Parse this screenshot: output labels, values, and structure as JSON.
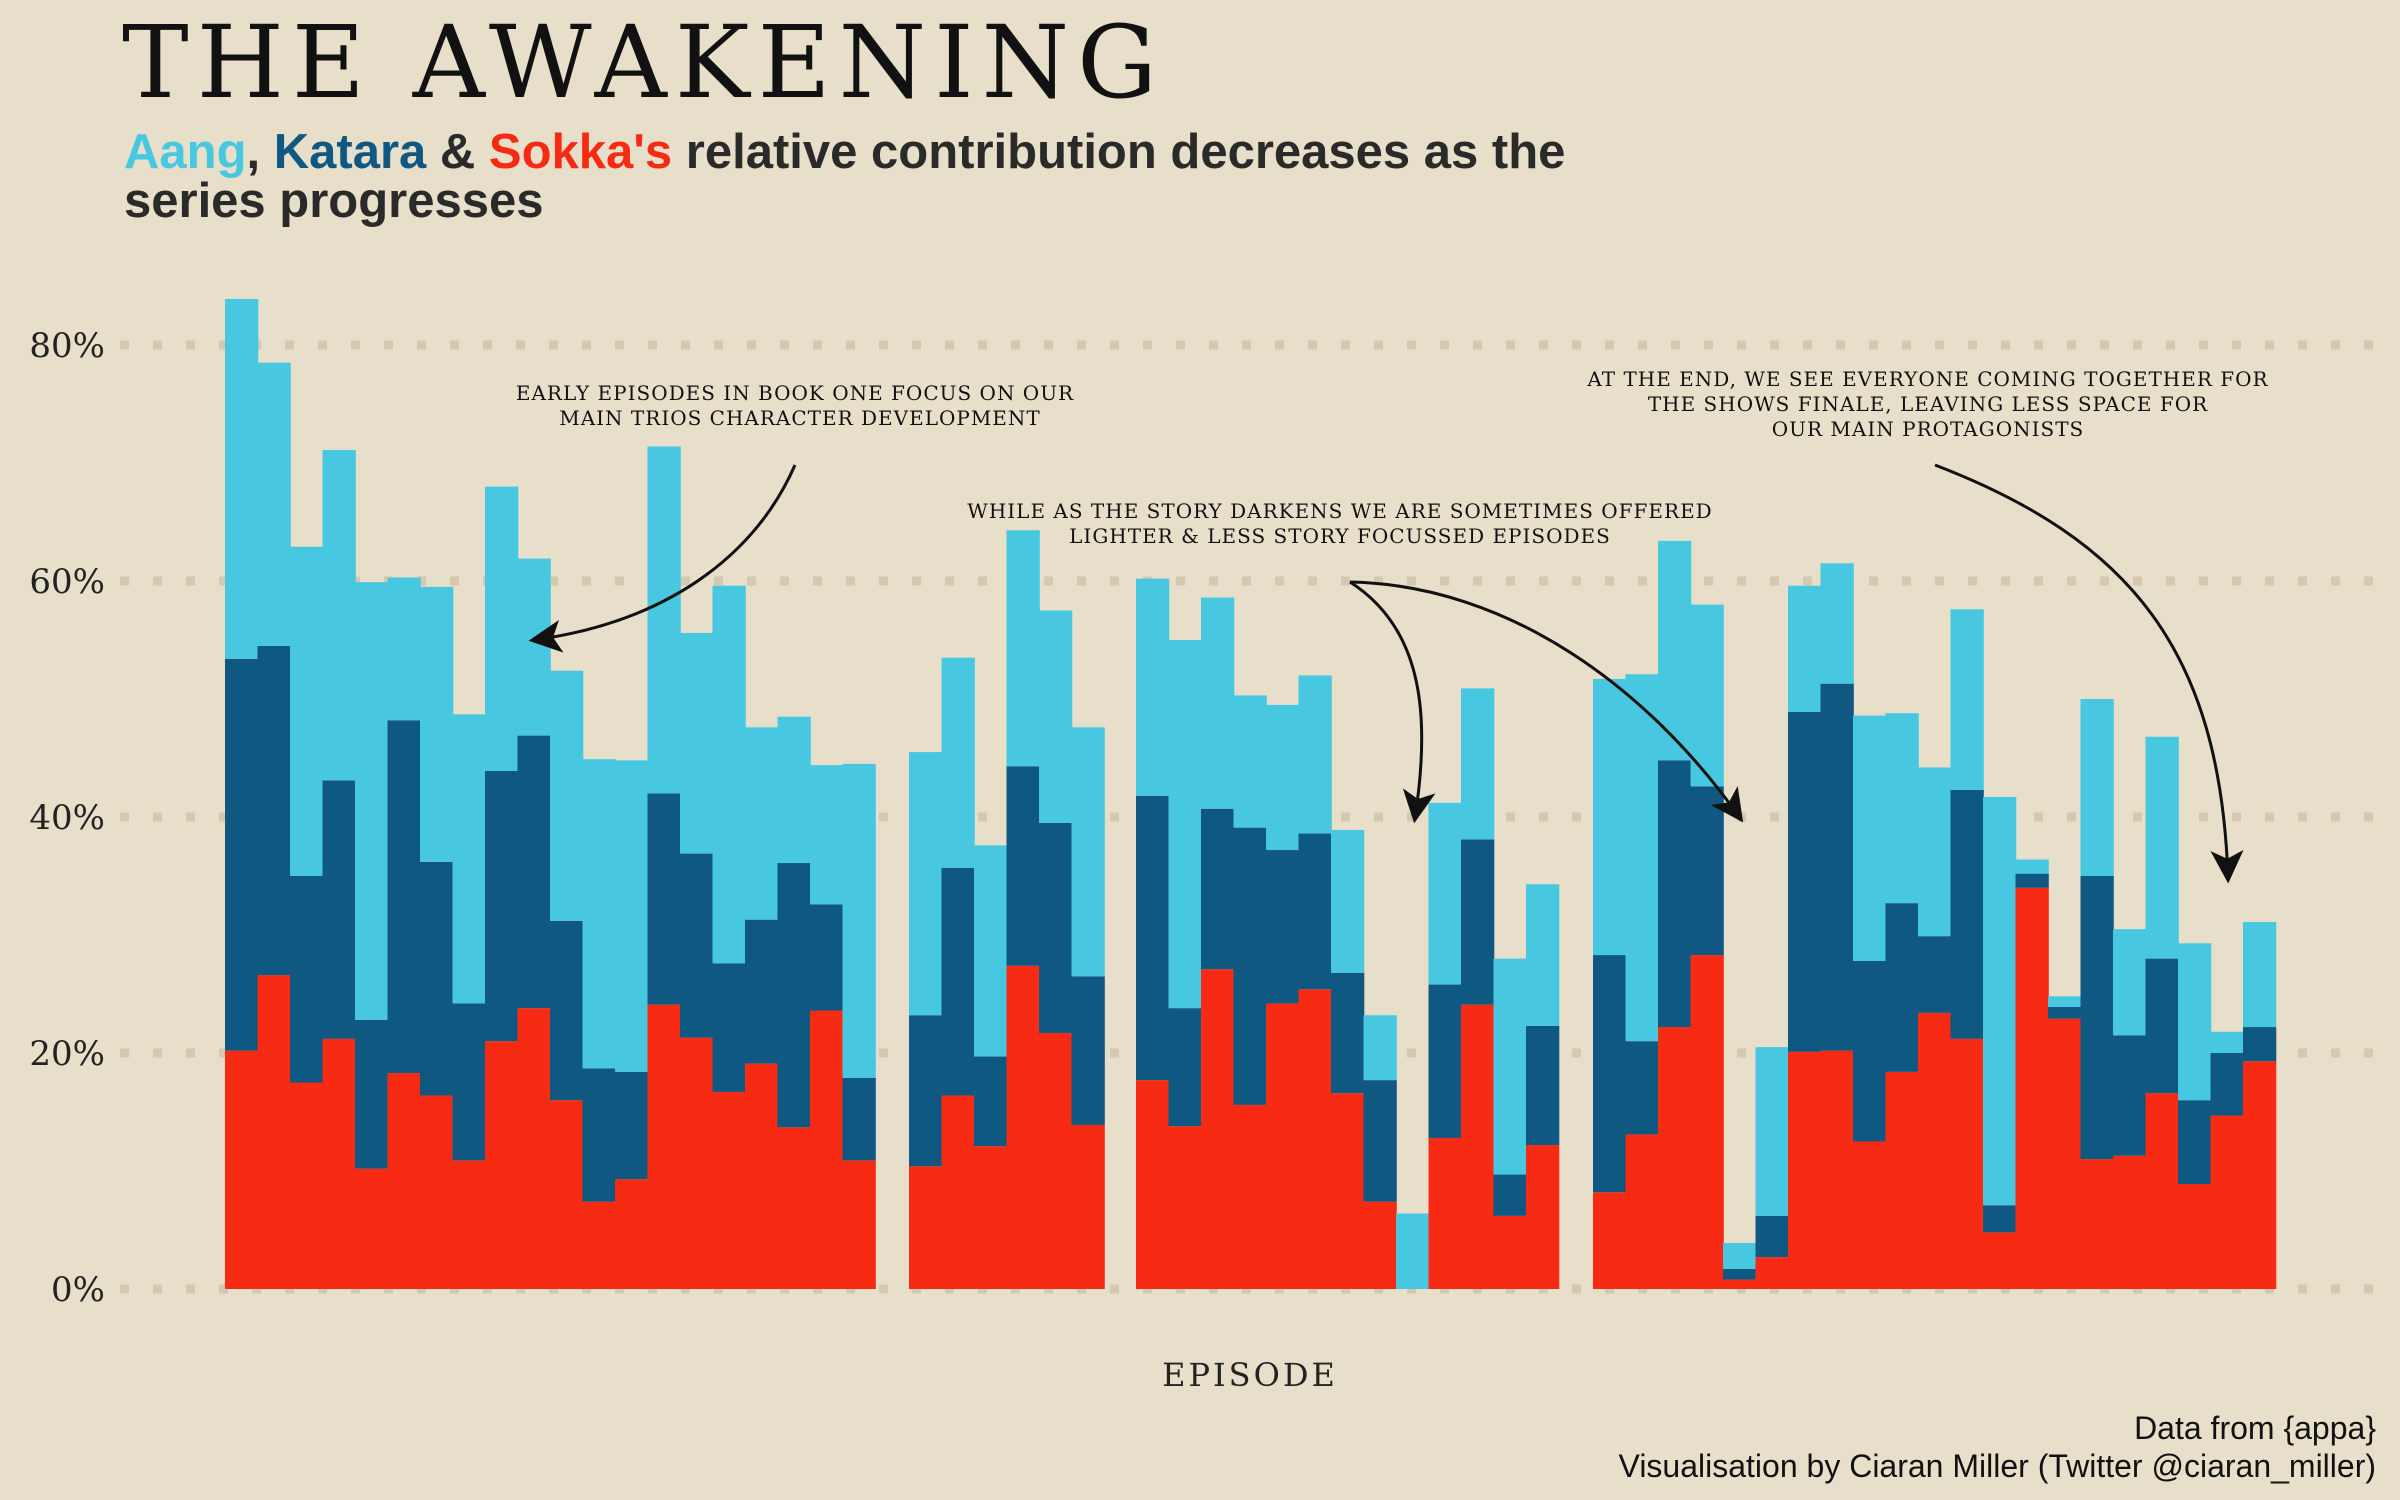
{
  "title": "THE AWAKENING",
  "subtitle": {
    "aang": "Aang",
    "sep1": ", ",
    "katara": "Katara",
    "sep2": " & ",
    "sokka": "Sokka's",
    "rest": " relative contribution decreases as the series progresses"
  },
  "credits": {
    "line1": "Data from {appa}",
    "line2": "Visualisation by Ciaran Miller (Twitter @ciaran_miller)"
  },
  "colors": {
    "aang": "#48c8e0",
    "katara": "#0e5881",
    "sokka": "#f72b13",
    "background": "#e8dfca"
  },
  "annotations": [
    {
      "lines": [
        "EARLY EPISODES IN BOOK ONE FOCUS ON OUR",
        "MAIN TRIOS CHARACTER DEVELOPMENT"
      ]
    },
    {
      "lines": [
        "WHILE AS THE STORY DARKENS WE ARE SOMETIMES OFFERED",
        "LIGHTER & LESS STORY FOCUSSED EPISODES"
      ]
    },
    {
      "lines": [
        "AT THE END, WE SEE EVERYONE COMING TOGETHER FOR",
        "THE SHOWS FINALE, LEAVING LESS SPACE FOR",
        "OUR MAIN PROTAGONISTS"
      ]
    }
  ],
  "chart_data": {
    "type": "bar",
    "stacked": true,
    "xlabel": "EPISODE",
    "ylabel": "",
    "ylim": [
      0,
      85
    ],
    "yticks": [
      "0%",
      "20%",
      "40%",
      "60%",
      "80%"
    ],
    "grid": "horizontal dotted",
    "legend": "none (series named in subtitle)",
    "groups": [
      {
        "sokka": [
          20.2,
          26.6,
          17.5,
          21.2,
          10.2,
          18.3,
          16.4,
          10.9,
          21.0,
          23.8,
          16.0,
          7.4,
          9.3,
          24.1,
          21.3,
          16.7,
          19.1,
          13.7,
          23.6,
          10.9
        ],
        "katara": [
          33.2,
          27.9,
          17.5,
          21.9,
          12.6,
          29.9,
          19.8,
          13.3,
          22.9,
          23.1,
          15.2,
          11.3,
          9.1,
          17.9,
          15.6,
          10.9,
          12.2,
          22.4,
          9.0,
          7.0
        ],
        "aang": [
          30.5,
          24.0,
          27.9,
          28.0,
          37.1,
          12.1,
          23.3,
          24.5,
          24.1,
          15.0,
          21.2,
          26.2,
          26.4,
          29.4,
          18.7,
          32.0,
          16.3,
          12.4,
          11.8,
          26.6
        ]
      },
      {
        "sokka": [
          10.4,
          16.4,
          12.1,
          27.4,
          21.7,
          13.9
        ],
        "katara": [
          12.8,
          19.3,
          7.6,
          16.9,
          17.8,
          12.6
        ],
        "aang": [
          22.3,
          17.8,
          17.9,
          20.0,
          18.0,
          21.1
        ]
      },
      {
        "sokka": [
          17.7,
          13.8,
          27.1,
          15.6,
          24.2,
          25.4,
          16.6,
          7.4,
          0.0,
          12.8,
          24.1,
          6.2,
          12.2
        ],
        "katara": [
          24.1,
          10.0,
          13.6,
          23.5,
          13.0,
          13.2,
          10.2,
          10.3,
          0.0,
          13.0,
          14.0,
          3.5,
          10.1
        ],
        "aang": [
          18.4,
          31.2,
          17.9,
          11.2,
          12.3,
          13.4,
          12.1,
          5.5,
          6.4,
          15.4,
          12.8,
          18.3,
          12.0
        ]
      },
      {
        "sokka": [
          8.2,
          13.1,
          22.2,
          28.3,
          0.8,
          2.7,
          20.1,
          20.2,
          12.5,
          18.4,
          23.4,
          21.2,
          4.8,
          34.0,
          22.9,
          11.0,
          11.3,
          16.6,
          8.9,
          14.7,
          19.3
        ],
        "katara": [
          20.1,
          7.9,
          22.6,
          14.3,
          0.9,
          3.5,
          28.8,
          31.1,
          15.3,
          14.3,
          6.5,
          21.1,
          2.3,
          1.2,
          1.0,
          24.0,
          10.2,
          11.4,
          7.1,
          5.3,
          2.9
        ],
        "aang": [
          23.4,
          31.1,
          18.6,
          15.4,
          2.2,
          14.3,
          10.7,
          10.2,
          20.8,
          16.1,
          14.3,
          15.3,
          34.6,
          1.2,
          0.9,
          15.0,
          9.0,
          18.8,
          13.3,
          1.8,
          8.9
        ]
      }
    ]
  }
}
